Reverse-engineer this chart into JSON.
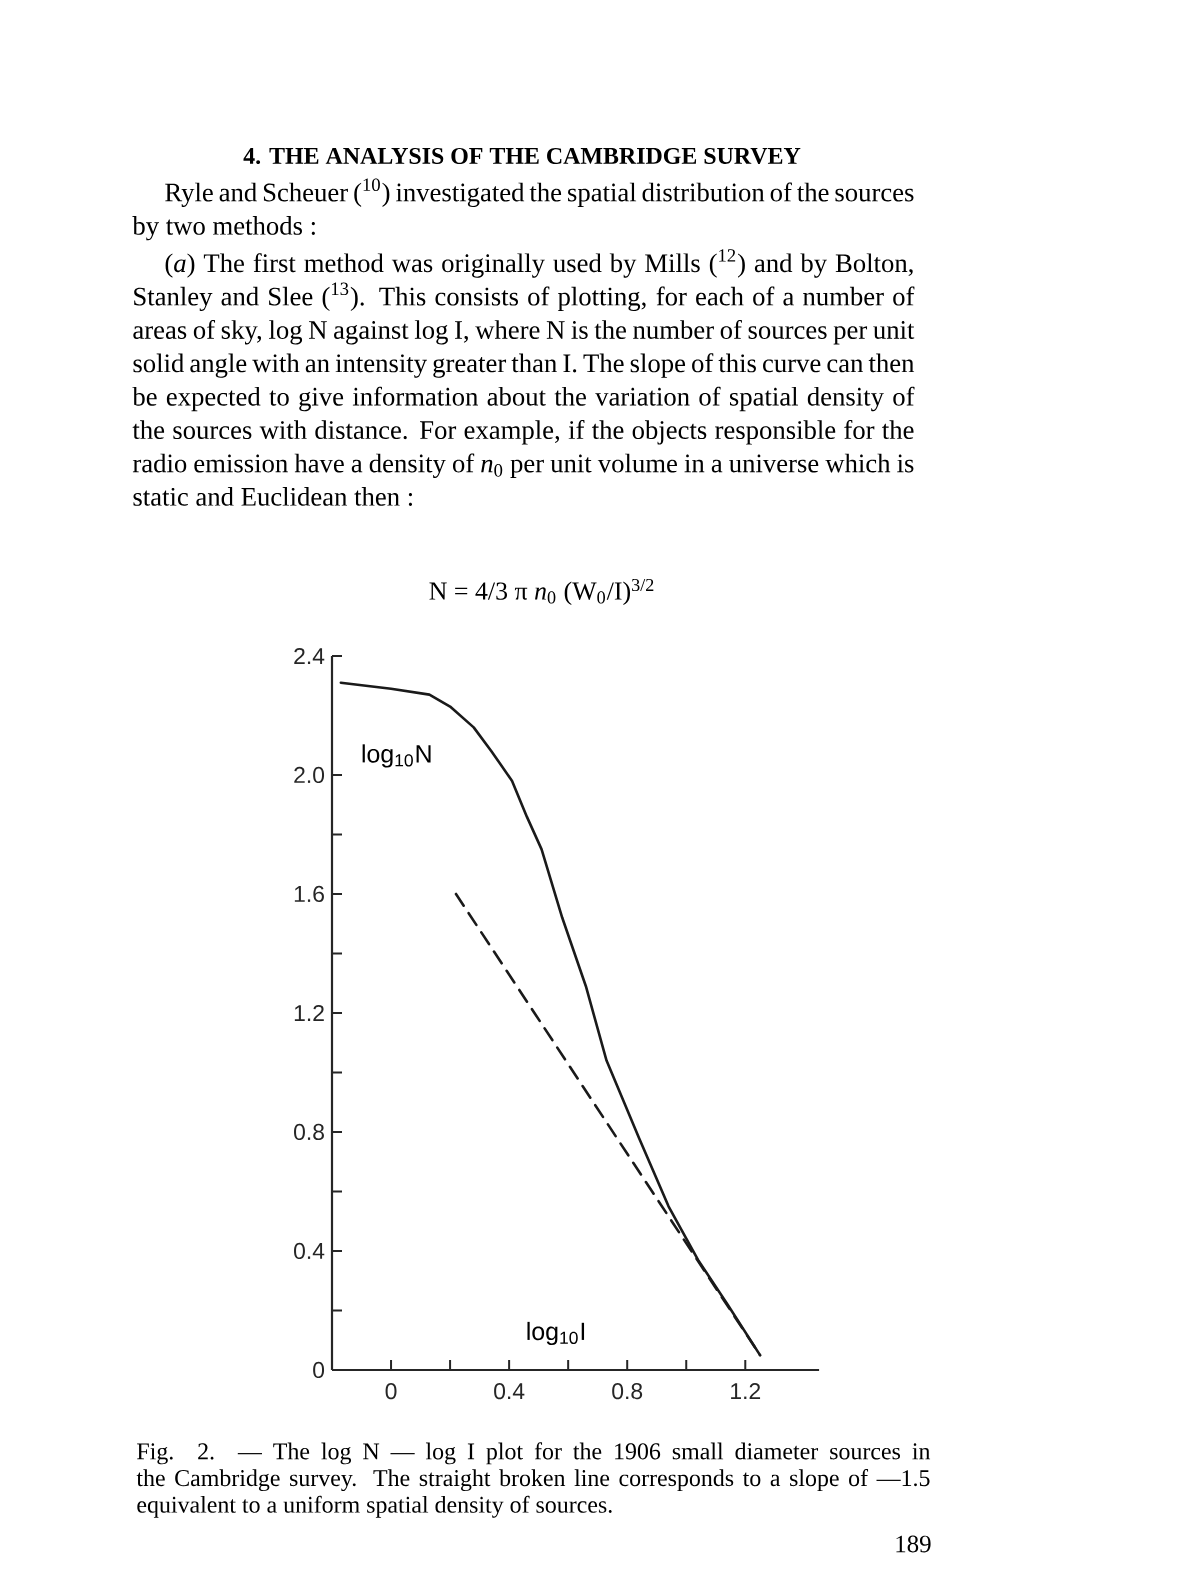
{
  "chart_data": {
    "type": "line",
    "title": "4. THE ANALYSIS OF THE CAMBRIDGE SURVEY",
    "annotations": [
      "Ryle and Scheuer ($^{10}$) investigated the spatial distribution of the sources by two methods :",
      "(*a*) The first method was originally used by Mills ($^{12}$) and by Bolton, Stanley and Slee ($^{13}$). This consists of plotting, for each of a number of areas of sky, log N against log I, where N is the number of sources per unit solid angle with an intensity greater than I. The slope of this curve can then be expected to give information about the variation of spatial density of the sources with distance. For example, if the objects responsible for the radio emission have a density of *n*$_{0}$ per unit volume in a universe which is static and Euclidean then :",
      "N = 4/3 π *n*$_{0}$ (W$_{0}$/I)$^{3/2}$",
      "Fig. 2. — The log N — log I plot for the 1906 small diameter sources in the Cambridge survey. The straight broken line corresponds to a slope of —1.5 equivalent to a uniform spatial density of sources.",
      "189"
    ],
    "xlabel": "log$_{10}$I",
    "ylabel": "log$_{10}$N",
    "series": [
      {
        "x": [
          -0.17,
          0.0,
          0.13,
          0.2,
          0.28,
          0.34,
          0.41,
          0.46,
          0.51,
          0.58,
          0.66,
          0.73,
          0.84,
          0.94,
          1.04,
          1.14,
          1.25
        ],
        "values": [
          2.31,
          2.29,
          2.27,
          2.23,
          2.16,
          2.08,
          1.98,
          1.86,
          1.75,
          1.52,
          1.29,
          1.04,
          0.78,
          0.55,
          0.37,
          0.22,
          0.05
        ],
        "color": "#1a1a1a"
      },
      {
        "x": [
          0.22,
          1.25
        ],
        "values": [
          1.6,
          0.05
        ],
        "color": "#1a1a1a",
        "line_style": "dashed"
      }
    ],
    "xlim": [
      -0.2,
      1.45
    ],
    "ylim": [
      0,
      2.4
    ],
    "xticks": [
      0,
      {
        "value": 0.2,
        "label": null
      },
      0.4,
      {
        "value": 0.6,
        "label": null
      },
      0.8,
      {
        "value": 1.0,
        "label": null
      },
      1.2
    ],
    "yticks": [
      0,
      {
        "value": 0.2,
        "label": null
      },
      0.4,
      {
        "value": 0.6,
        "label": null
      },
      0.8,
      {
        "value": 1.0,
        "label": null
      },
      1.2,
      {
        "value": 1.4,
        "label": null
      },
      1.6,
      {
        "value": 1.8,
        "label": null
      },
      {
        "value": 2,
        "label": "2.0"
      },
      2.4
    ],
    "marker": "none",
    "line_style": "solid"
  }
}
